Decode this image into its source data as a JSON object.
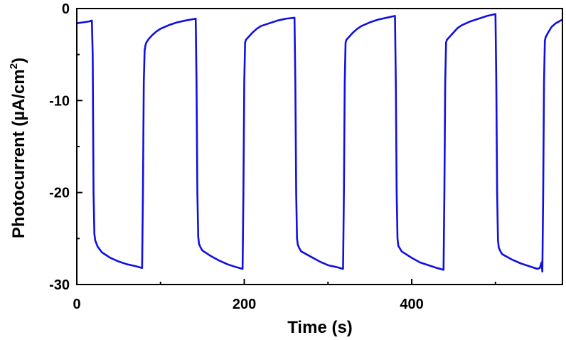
{
  "chart_data": {
    "type": "line",
    "xlabel": "Time (s)",
    "ylabel": {
      "main": "Photocurrent (µA/cm",
      "superscript": "2",
      "close": ")"
    },
    "xlim": [
      0,
      580
    ],
    "ylim": [
      -30,
      0
    ],
    "x_ticks": [
      0,
      200,
      400
    ],
    "y_ticks": [
      0,
      -10,
      -20,
      -30
    ],
    "grid": false,
    "series": [
      {
        "color": "#1010e0",
        "x": [
          0,
          15,
          18,
          19,
          20,
          21,
          22,
          25,
          30,
          40,
          50,
          60,
          70,
          78,
          79,
          80,
          81,
          82,
          83,
          86,
          90,
          95,
          100,
          110,
          120,
          130,
          142,
          143,
          144,
          145,
          146,
          148,
          150,
          160,
          170,
          180,
          190,
          198,
          199,
          200,
          201,
          202,
          203,
          206,
          210,
          215,
          220,
          230,
          240,
          250,
          260,
          261,
          262,
          263,
          264,
          266,
          268,
          280,
          290,
          300,
          310,
          318,
          319,
          320,
          321,
          322,
          323,
          326,
          330,
          335,
          340,
          350,
          360,
          370,
          380,
          381,
          382,
          383,
          384,
          386,
          388,
          400,
          410,
          420,
          430,
          438,
          439,
          440,
          441,
          442,
          443,
          446,
          450,
          455,
          460,
          470,
          480,
          490,
          500,
          501,
          502,
          503,
          504,
          506,
          508,
          520,
          530,
          540,
          550,
          553,
          555,
          556,
          557,
          558,
          559,
          560,
          563,
          567,
          572,
          580
        ],
        "y": [
          -1.6,
          -1.4,
          -1.3,
          -5,
          -20,
          -24.5,
          -25.2,
          -25.9,
          -26.5,
          -27.1,
          -27.5,
          -27.8,
          -28.0,
          -28.2,
          -20,
          -8,
          -4.6,
          -4.0,
          -3.7,
          -3.3,
          -2.9,
          -2.5,
          -2.2,
          -1.8,
          -1.5,
          -1.3,
          -1.1,
          -8,
          -20,
          -24.8,
          -25.6,
          -26.0,
          -26.3,
          -26.9,
          -27.4,
          -27.8,
          -28.1,
          -28.3,
          -20,
          -8,
          -3.7,
          -3.4,
          -3.3,
          -3.0,
          -2.6,
          -2.2,
          -1.9,
          -1.6,
          -1.3,
          -1.1,
          -1.0,
          -8,
          -20,
          -25.0,
          -25.7,
          -26.1,
          -26.4,
          -27.0,
          -27.5,
          -27.9,
          -28.1,
          -28.3,
          -20,
          -8,
          -3.7,
          -3.4,
          -3.3,
          -3.0,
          -2.6,
          -2.2,
          -1.9,
          -1.5,
          -1.2,
          -1.0,
          -0.8,
          -8,
          -20,
          -25.0,
          -25.8,
          -26.1,
          -26.4,
          -27.1,
          -27.6,
          -27.9,
          -28.2,
          -28.4,
          -20,
          -8,
          -3.7,
          -3.4,
          -3.3,
          -3.0,
          -2.6,
          -2.1,
          -1.8,
          -1.4,
          -1.1,
          -0.8,
          -0.6,
          -8,
          -20,
          -25.2,
          -26.0,
          -26.4,
          -26.7,
          -27.3,
          -27.7,
          -28.0,
          -28.3,
          -28.2,
          -27.6,
          -28.6,
          -20,
          -8,
          -3.5,
          -3.1,
          -2.6,
          -2.0,
          -1.6,
          -1.2
        ]
      }
    ]
  }
}
